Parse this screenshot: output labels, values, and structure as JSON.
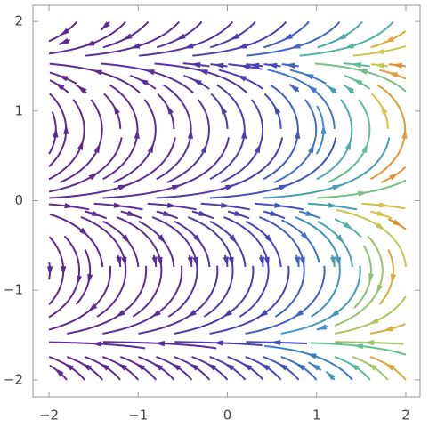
{
  "chart_data": {
    "type": "stream",
    "xlim": [
      -2.18,
      2.16
    ],
    "ylim": [
      -2.19,
      2.18
    ],
    "xticks": [
      {
        "value": -2,
        "label": "−2"
      },
      {
        "value": -1,
        "label": "−1"
      },
      0,
      1,
      2
    ],
    "yticks": [
      {
        "value": -2,
        "label": "−2"
      },
      {
        "value": -1,
        "label": "−1"
      },
      0,
      1,
      2
    ],
    "frame_color": "#999999"
  }
}
